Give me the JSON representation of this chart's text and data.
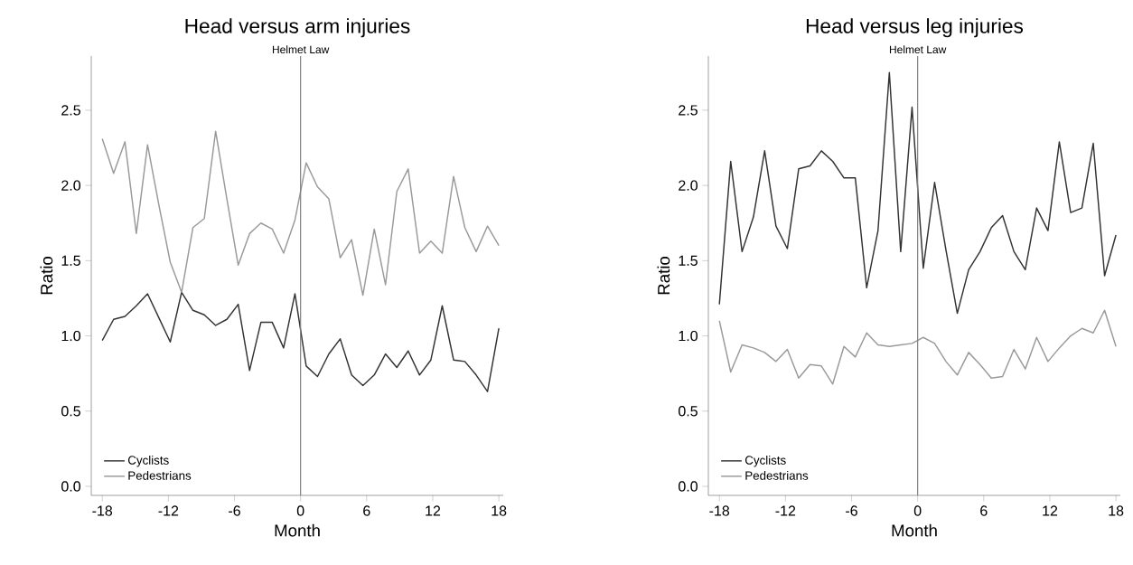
{
  "chart_data": [
    {
      "type": "line",
      "title": "Head versus arm injuries",
      "xlabel": "Month",
      "ylabel": "Ratio",
      "legend": "bottom left",
      "x": [
        -18,
        -16.97,
        -15.94,
        -14.91,
        -13.89,
        -12.86,
        -11.83,
        -10.8,
        -9.77,
        -8.74,
        -7.71,
        -6.69,
        -5.66,
        -4.63,
        -3.6,
        -2.57,
        -1.54,
        -0.51,
        0.51,
        1.54,
        2.57,
        3.6,
        4.63,
        5.66,
        6.69,
        7.71,
        8.74,
        9.77,
        10.8,
        11.83,
        12.86,
        13.89,
        14.91,
        15.94,
        16.97,
        18
      ],
      "series": [
        {
          "name": "Cyclists",
          "color": "#333333",
          "values": [
            0.97,
            1.11,
            1.13,
            1.2,
            1.28,
            1.12,
            0.96,
            1.29,
            1.17,
            1.14,
            1.07,
            1.11,
            1.21,
            0.77,
            1.09,
            1.09,
            0.92,
            1.28,
            0.8,
            0.73,
            0.88,
            0.98,
            0.74,
            0.67,
            0.74,
            0.88,
            0.79,
            0.9,
            0.74,
            0.84,
            1.2,
            0.84,
            0.83,
            0.74,
            0.63,
            1.05
          ]
        },
        {
          "name": "Pedestrians",
          "color": "#9a9a9a",
          "values": [
            2.31,
            2.08,
            2.29,
            1.68,
            2.27,
            1.87,
            1.49,
            1.29,
            1.72,
            1.78,
            2.36,
            1.91,
            1.47,
            1.68,
            1.75,
            1.71,
            1.55,
            1.77,
            2.15,
            1.99,
            1.91,
            1.52,
            1.64,
            1.27,
            1.71,
            1.34,
            1.96,
            2.11,
            1.55,
            1.63,
            1.55,
            2.06,
            1.72,
            1.56,
            1.73,
            1.6
          ]
        }
      ],
      "xlim": [
        -19,
        18.4
      ],
      "ylim": [
        -0.06,
        2.86
      ],
      "xticks": [
        -18,
        -12,
        -6,
        0,
        6,
        12,
        18
      ],
      "yticks": [
        {
          "value": 0,
          "label": "0.0"
        },
        0.5,
        {
          "value": 1,
          "label": "1.0"
        },
        1.5,
        {
          "value": 2,
          "label": "2.0"
        },
        2.5
      ],
      "ref_lines": [
        {
          "axis": "x",
          "value": 0,
          "label": "Helmet Law",
          "color": "#808080"
        }
      ]
    },
    {
      "type": "line",
      "title": "Head versus leg injuries",
      "xlabel": "Month",
      "ylabel": "Ratio",
      "legend": "bottom left",
      "x": [
        -18,
        -16.97,
        -15.94,
        -14.91,
        -13.89,
        -12.86,
        -11.83,
        -10.8,
        -9.77,
        -8.74,
        -7.71,
        -6.69,
        -5.66,
        -4.63,
        -3.6,
        -2.57,
        -1.54,
        -0.51,
        0.51,
        1.54,
        2.57,
        3.6,
        4.63,
        5.66,
        6.69,
        7.71,
        8.74,
        9.77,
        10.8,
        11.83,
        12.86,
        13.89,
        14.91,
        15.94,
        16.97,
        18
      ],
      "series": [
        {
          "name": "Cyclists",
          "color": "#333333",
          "values": [
            1.21,
            2.16,
            1.56,
            1.79,
            2.23,
            1.73,
            1.58,
            2.11,
            2.13,
            2.23,
            2.16,
            2.05,
            2.05,
            1.32,
            1.7,
            2.75,
            1.56,
            2.52,
            1.45,
            2.02,
            1.57,
            1.15,
            1.44,
            1.56,
            1.72,
            1.8,
            1.56,
            1.44,
            1.85,
            1.7,
            2.29,
            1.82,
            1.85,
            2.28,
            1.4,
            1.67
          ]
        },
        {
          "name": "Pedestrians",
          "color": "#9a9a9a",
          "values": [
            1.1,
            0.76,
            0.94,
            0.92,
            0.89,
            0.83,
            0.91,
            0.72,
            0.81,
            0.8,
            0.68,
            0.93,
            0.86,
            1.02,
            0.94,
            0.93,
            0.94,
            0.95,
            0.99,
            0.95,
            0.83,
            0.74,
            0.89,
            0.81,
            0.72,
            0.73,
            0.91,
            0.78,
            0.99,
            0.83,
            0.92,
            1,
            1.05,
            1.02,
            1.17,
            0.93
          ]
        }
      ],
      "xlim": [
        -19,
        18.4
      ],
      "ylim": [
        -0.06,
        2.86
      ],
      "xticks": [
        -18,
        -12,
        -6,
        0,
        6,
        12,
        18
      ],
      "yticks": [
        {
          "value": 0,
          "label": "0.0"
        },
        0.5,
        {
          "value": 1,
          "label": "1.0"
        },
        1.5,
        {
          "value": 2,
          "label": "2.0"
        },
        2.5
      ],
      "ref_lines": [
        {
          "axis": "x",
          "value": 0,
          "label": "Helmet Law",
          "color": "#808080"
        }
      ]
    }
  ]
}
